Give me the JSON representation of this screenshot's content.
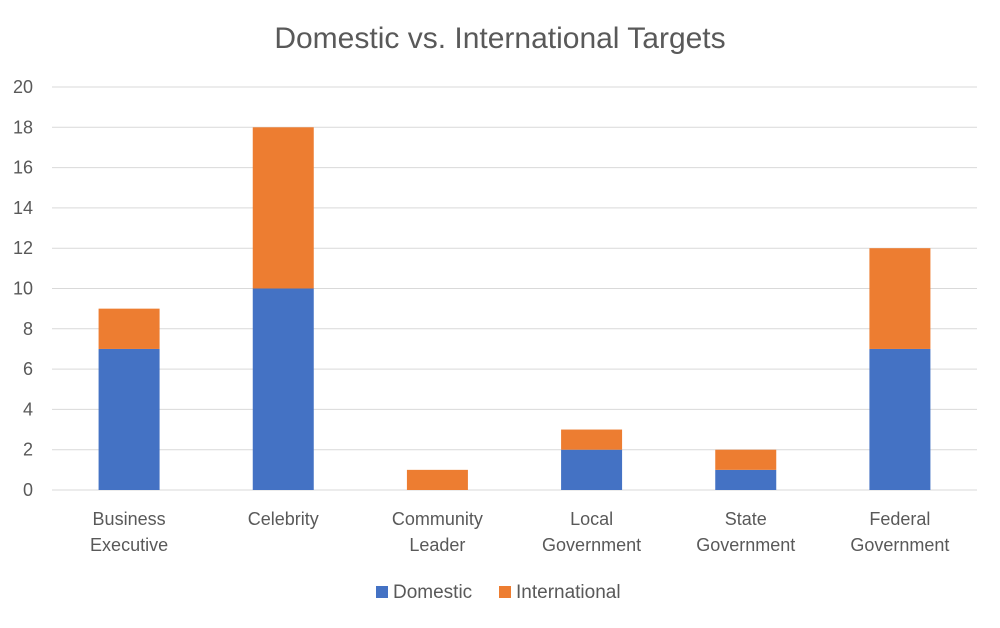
{
  "chart_data": {
    "type": "bar",
    "stacked": true,
    "title": "Domestic vs. International Targets",
    "xlabel": "",
    "ylabel": "",
    "ylim": [
      0,
      20
    ],
    "yticks": [
      "0",
      "2",
      "4",
      "6",
      "8",
      "10",
      "12",
      "14",
      "16",
      "18",
      "20"
    ],
    "categories": [
      [
        "Business",
        "Executive"
      ],
      [
        "Celebrity"
      ],
      [
        "Community",
        "Leader"
      ],
      [
        "Local",
        "Government"
      ],
      [
        "State",
        "Government"
      ],
      [
        "Federal",
        "Government"
      ]
    ],
    "series": [
      {
        "name": "Domestic",
        "values": [
          7,
          10,
          0,
          2,
          1,
          7
        ],
        "color": "#4472c4"
      },
      {
        "name": "International",
        "values": [
          2,
          8,
          1,
          1,
          1,
          5
        ],
        "color": "#ed7d31"
      }
    ],
    "grid": true,
    "legend_position": "bottom"
  }
}
